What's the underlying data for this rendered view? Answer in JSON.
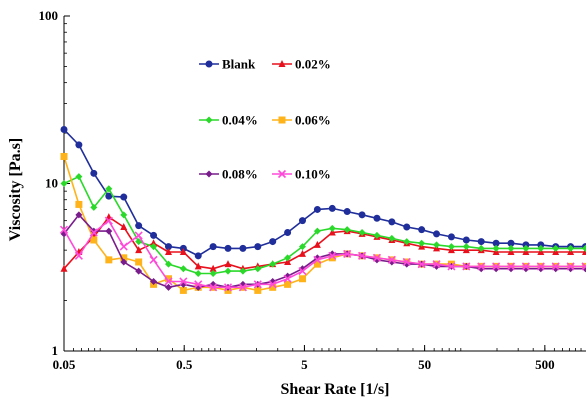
{
  "chart_data": {
    "type": "line",
    "xlabel": "Shear Rate [1/s]",
    "ylabel": "Viscosity [Pa.s]",
    "x_scale": "log",
    "y_scale": "log",
    "xlim": [
      0.05,
      1100
    ],
    "ylim": [
      1,
      100
    ],
    "x_ticks": [
      0.05,
      0.5,
      5,
      50,
      500
    ],
    "x_tick_labels": [
      "0.05",
      "0.5",
      "5",
      "50",
      "500"
    ],
    "y_ticks": [
      1,
      10,
      100
    ],
    "y_tick_labels": [
      "1",
      "10",
      "100"
    ],
    "grid": false,
    "legend": "inside top-center",
    "x": [
      0.05,
      0.0665,
      0.0885,
      0.118,
      0.157,
      0.209,
      0.278,
      0.37,
      0.492,
      0.654,
      0.87,
      1.157,
      1.539,
      2.047,
      2.723,
      3.622,
      4.818,
      6.409,
      8.525,
      11.34,
      15.08,
      20.06,
      26.69,
      35.5,
      47.22,
      62.81,
      83.55,
      111.1,
      147.8,
      196.6,
      261.5,
      347.9,
      462.8,
      615.6,
      818.9,
      1089
    ],
    "series": [
      {
        "name": "Blank",
        "color": "#1f2e9a",
        "marker": "circle",
        "values": [
          21,
          17,
          11.5,
          8.4,
          8.3,
          5.6,
          4.9,
          4.2,
          4.1,
          3.7,
          4.2,
          4.1,
          4.1,
          4.2,
          4.5,
          5.1,
          6.0,
          7.0,
          7.1,
          6.8,
          6.5,
          6.2,
          5.9,
          5.5,
          5.3,
          5.0,
          4.8,
          4.6,
          4.5,
          4.4,
          4.4,
          4.3,
          4.3,
          4.2,
          4.2,
          4.2
        ]
      },
      {
        "name": "0.02%",
        "color": "#e8101c",
        "marker": "triangle",
        "values": [
          3.1,
          3.9,
          4.8,
          6.3,
          5.5,
          4.0,
          4.4,
          3.9,
          3.9,
          3.2,
          3.1,
          3.3,
          3.1,
          3.2,
          3.3,
          3.4,
          3.8,
          4.3,
          5.1,
          5.2,
          5.0,
          4.8,
          4.6,
          4.4,
          4.2,
          4.1,
          4.0,
          4.0,
          4.0,
          3.9,
          3.9,
          3.9,
          3.9,
          3.9,
          3.9,
          3.9
        ]
      },
      {
        "name": "0.04%",
        "color": "#2bd92b",
        "marker": "diamond",
        "values": [
          10,
          11,
          7.2,
          9.3,
          6.5,
          4.5,
          4.2,
          3.3,
          3.1,
          2.9,
          2.9,
          3.0,
          3.0,
          3.1,
          3.3,
          3.6,
          4.2,
          5.2,
          5.4,
          5.3,
          5.1,
          4.9,
          4.7,
          4.5,
          4.4,
          4.3,
          4.2,
          4.2,
          4.1,
          4.1,
          4.1,
          4.1,
          4.1,
          4.1,
          4.1,
          4.1
        ]
      },
      {
        "name": "0.06%",
        "color": "#ffb31a",
        "marker": "square",
        "values": [
          14.5,
          7.5,
          4.6,
          3.5,
          3.6,
          3.4,
          2.5,
          2.7,
          2.3,
          2.4,
          2.4,
          2.3,
          2.4,
          2.3,
          2.4,
          2.5,
          2.7,
          3.3,
          3.6,
          3.8,
          3.7,
          3.6,
          3.5,
          3.4,
          3.3,
          3.3,
          3.3,
          3.2,
          3.2,
          3.2,
          3.2,
          3.2,
          3.2,
          3.2,
          3.2,
          3.2
        ]
      },
      {
        "name": "0.08%",
        "color": "#7a1d8c",
        "marker": "diamond",
        "values": [
          5.0,
          6.5,
          5.2,
          5.2,
          3.4,
          3.0,
          2.6,
          2.4,
          2.5,
          2.4,
          2.5,
          2.4,
          2.5,
          2.5,
          2.6,
          2.8,
          3.1,
          3.6,
          3.8,
          3.8,
          3.7,
          3.5,
          3.4,
          3.3,
          3.3,
          3.2,
          3.2,
          3.2,
          3.1,
          3.1,
          3.1,
          3.1,
          3.1,
          3.1,
          3.1,
          3.1
        ]
      },
      {
        "name": "0.10%",
        "color": "#ff4ad9",
        "marker": "cross",
        "values": [
          5.3,
          3.7,
          5.1,
          6.0,
          4.2,
          4.9,
          3.5,
          2.6,
          2.6,
          2.5,
          2.4,
          2.4,
          2.4,
          2.5,
          2.5,
          2.7,
          3.0,
          3.5,
          3.7,
          3.8,
          3.7,
          3.6,
          3.5,
          3.4,
          3.3,
          3.3,
          3.2,
          3.2,
          3.2,
          3.2,
          3.2,
          3.2,
          3.2,
          3.2,
          3.2,
          3.2
        ]
      }
    ]
  }
}
